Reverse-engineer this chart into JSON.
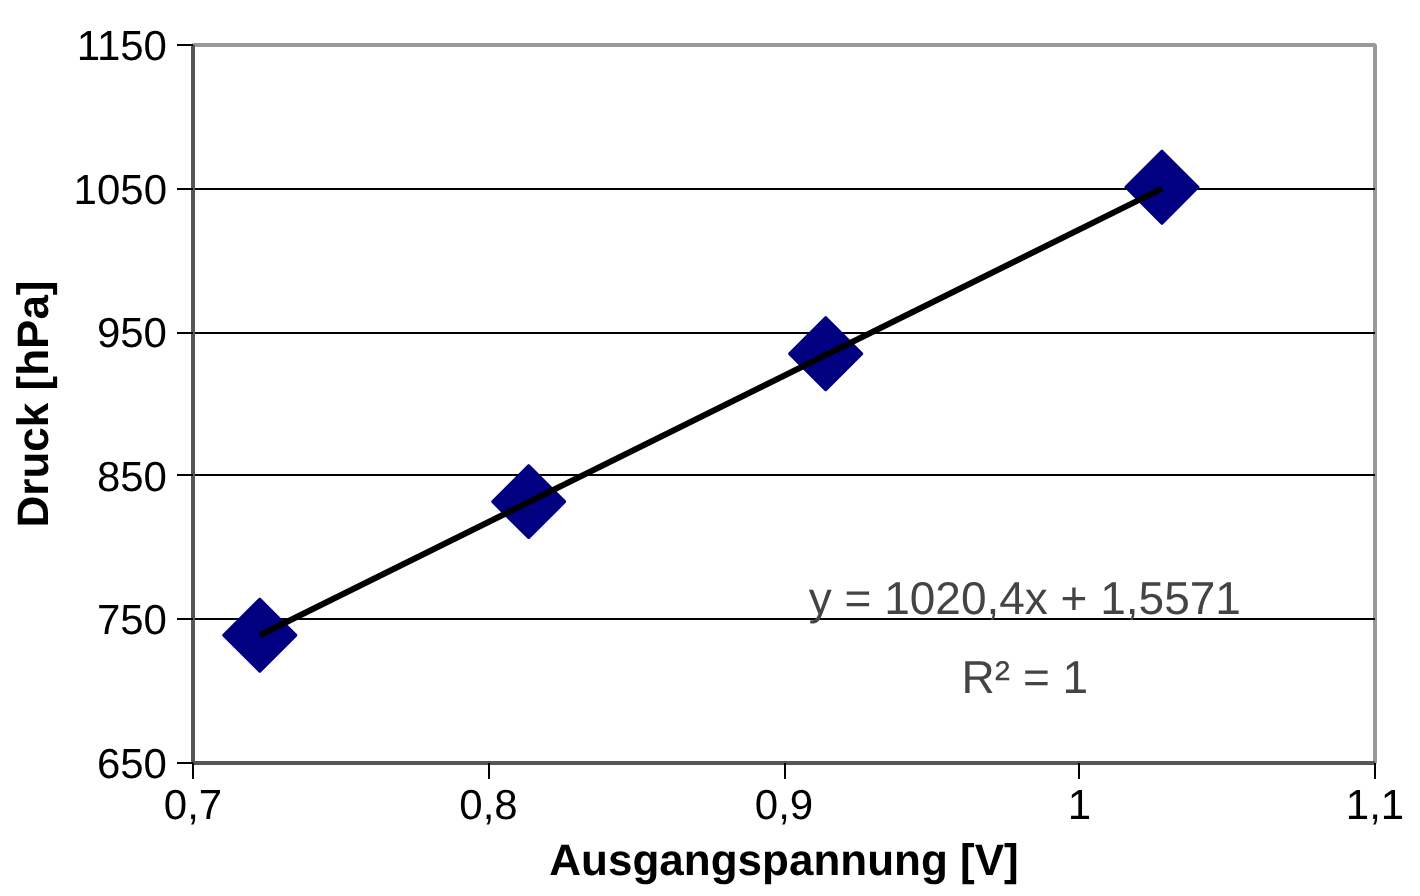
{
  "chart_data": {
    "type": "scatter",
    "xlabel": "Ausgangspannung [V]",
    "ylabel": "Druck [hPa]",
    "xlim": [
      0.7,
      1.1
    ],
    "ylim": [
      650,
      1150
    ],
    "xticks": [
      {
        "value": 0.7,
        "label": "0,7"
      },
      {
        "value": 0.8,
        "label": "0,8"
      },
      {
        "value": 0.9,
        "label": "0,9"
      },
      {
        "value": 1.0,
        "label": "1"
      },
      {
        "value": 1.1,
        "label": "1,1"
      }
    ],
    "yticks": [
      650,
      750,
      850,
      950,
      1050,
      1150
    ],
    "grid": "y",
    "marker": "diamond",
    "series": [
      {
        "color": "#000080",
        "x": [
          0.7226,
          0.8136,
          0.9141,
          1.0279
        ],
        "values": [
          739,
          832,
          935,
          1051
        ]
      },
      {
        "type": "line",
        "color": "#000000",
        "marker": "none",
        "x": [
          0.7226,
          1.0279
        ],
        "values": [
          739,
          1050
        ]
      }
    ],
    "annotations": [
      "y = 1020,4x + 1,5571",
      "R² = 1"
    ]
  }
}
